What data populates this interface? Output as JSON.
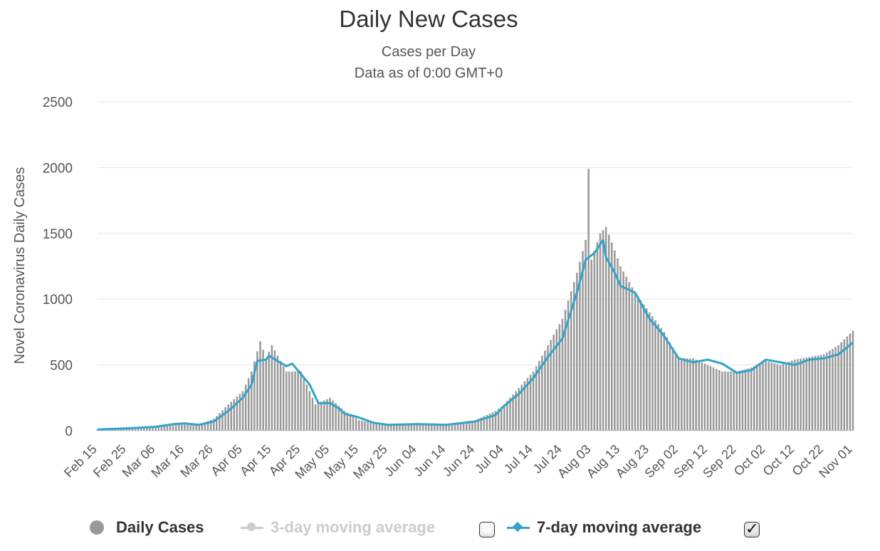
{
  "title": "Daily New Cases",
  "subtitle_line1": "Cases per Day",
  "subtitle_line2": "Data as of 0:00 GMT+0",
  "legend": {
    "daily_cases": "Daily Cases",
    "avg3": "3-day moving average",
    "avg3_checked": false,
    "avg7": "7-day moving average",
    "avg7_checked": true
  },
  "colors": {
    "bars": "#999999",
    "line7": "#33a3c8",
    "legend_inactive": "#cccccc",
    "gridline": "#e6e6e6",
    "text": "#333333"
  },
  "chart_data": {
    "type": "bar",
    "title": "Daily New Cases",
    "subtitle": [
      "Cases per Day",
      "Data as of 0:00 GMT+0"
    ],
    "ylabel": "Novel Coronavirus Daily Cases",
    "ylim": [
      0,
      2500
    ],
    "yticks": [
      0,
      500,
      1000,
      1500,
      2000,
      2500
    ],
    "xtick_labels": [
      "Feb 15",
      "Feb 25",
      "Mar 06",
      "Mar 16",
      "Mar 26",
      "Apr 05",
      "Apr 15",
      "Apr 25",
      "May 05",
      "May 15",
      "May 25",
      "Jun 04",
      "Jun 14",
      "Jun 24",
      "Jul 04",
      "Jul 14",
      "Jul 24",
      "Aug 03",
      "Aug 13",
      "Aug 23",
      "Sep 02",
      "Sep 12",
      "Sep 22",
      "Oct 02",
      "Oct 12",
      "Oct 22",
      "Nov 01"
    ],
    "grid": true,
    "legend_position": "bottom",
    "daily_anchors": [
      [
        "Feb 15",
        10
      ],
      [
        "Feb 25",
        20
      ],
      [
        "Mar 06",
        30
      ],
      [
        "Mar 16",
        50
      ],
      [
        "Mar 21",
        50
      ],
      [
        "Mar 26",
        90
      ],
      [
        "Mar 31",
        200
      ],
      [
        "Apr 05",
        300
      ],
      [
        "Apr 08",
        450
      ],
      [
        "Apr 11",
        680
      ],
      [
        "Apr 13",
        550
      ],
      [
        "Apr 15",
        650
      ],
      [
        "Apr 20",
        450
      ],
      [
        "Apr 25",
        450
      ],
      [
        "Apr 30",
        200
      ],
      [
        "May 05",
        250
      ],
      [
        "May 10",
        150
      ],
      [
        "May 15",
        80
      ],
      [
        "May 20",
        60
      ],
      [
        "May 25",
        50
      ],
      [
        "Jun 04",
        50
      ],
      [
        "Jun 14",
        50
      ],
      [
        "Jun 24",
        80
      ],
      [
        "Jul 01",
        150
      ],
      [
        "Jul 04",
        200
      ],
      [
        "Jul 14",
        450
      ],
      [
        "Jul 19",
        650
      ],
      [
        "Jul 24",
        850
      ],
      [
        "Jul 29",
        1200
      ],
      [
        "Aug 01",
        1450
      ],
      [
        "Aug 02",
        1990
      ],
      [
        "Aug 03",
        1300
      ],
      [
        "Aug 06",
        1500
      ],
      [
        "Aug 08",
        1550
      ],
      [
        "Aug 13",
        1250
      ],
      [
        "Aug 18",
        1050
      ],
      [
        "Aug 23",
        900
      ],
      [
        "Aug 28",
        750
      ],
      [
        "Sep 02",
        550
      ],
      [
        "Sep 07",
        550
      ],
      [
        "Sep 12",
        500
      ],
      [
        "Sep 17",
        450
      ],
      [
        "Sep 22",
        450
      ],
      [
        "Sep 27",
        480
      ],
      [
        "Oct 02",
        530
      ],
      [
        "Oct 07",
        500
      ],
      [
        "Oct 12",
        540
      ],
      [
        "Oct 17",
        560
      ],
      [
        "Oct 22",
        580
      ],
      [
        "Oct 27",
        650
      ],
      [
        "Nov 01",
        760
      ]
    ],
    "series": [
      {
        "name": "7-day moving average",
        "type": "line",
        "points": [
          [
            "Feb 15",
            10
          ],
          [
            "Feb 25",
            18
          ],
          [
            "Mar 06",
            30
          ],
          [
            "Mar 12",
            50
          ],
          [
            "Mar 16",
            55
          ],
          [
            "Mar 21",
            45
          ],
          [
            "Mar 26",
            70
          ],
          [
            "Mar 31",
            150
          ],
          [
            "Apr 05",
            250
          ],
          [
            "Apr 08",
            350
          ],
          [
            "Apr 10",
            530
          ],
          [
            "Apr 13",
            540
          ],
          [
            "Apr 14",
            570
          ],
          [
            "Apr 17",
            530
          ],
          [
            "Apr 20",
            490
          ],
          [
            "Apr 22",
            510
          ],
          [
            "Apr 25",
            430
          ],
          [
            "Apr 28",
            350
          ],
          [
            "May 01",
            210
          ],
          [
            "May 05",
            210
          ],
          [
            "May 08",
            170
          ],
          [
            "May 10",
            130
          ],
          [
            "May 15",
            100
          ],
          [
            "May 20",
            60
          ],
          [
            "May 25",
            45
          ],
          [
            "Jun 04",
            50
          ],
          [
            "Jun 14",
            45
          ],
          [
            "Jun 24",
            70
          ],
          [
            "Jul 01",
            120
          ],
          [
            "Jul 04",
            190
          ],
          [
            "Jul 09",
            280
          ],
          [
            "Jul 14",
            400
          ],
          [
            "Jul 19",
            560
          ],
          [
            "Jul 24",
            700
          ],
          [
            "Jul 29",
            1050
          ],
          [
            "Aug 01",
            1300
          ],
          [
            "Aug 04",
            1350
          ],
          [
            "Aug 07",
            1450
          ],
          [
            "Aug 08",
            1320
          ],
          [
            "Aug 11",
            1200
          ],
          [
            "Aug 13",
            1100
          ],
          [
            "Aug 18",
            1050
          ],
          [
            "Aug 23",
            850
          ],
          [
            "Aug 28",
            720
          ],
          [
            "Sep 02",
            550
          ],
          [
            "Sep 07",
            520
          ],
          [
            "Sep 12",
            540
          ],
          [
            "Sep 17",
            510
          ],
          [
            "Sep 22",
            440
          ],
          [
            "Sep 27",
            460
          ],
          [
            "Oct 02",
            540
          ],
          [
            "Oct 07",
            520
          ],
          [
            "Oct 12",
            500
          ],
          [
            "Oct 17",
            540
          ],
          [
            "Oct 22",
            550
          ],
          [
            "Oct 27",
            580
          ],
          [
            "Nov 01",
            670
          ]
        ]
      }
    ]
  }
}
